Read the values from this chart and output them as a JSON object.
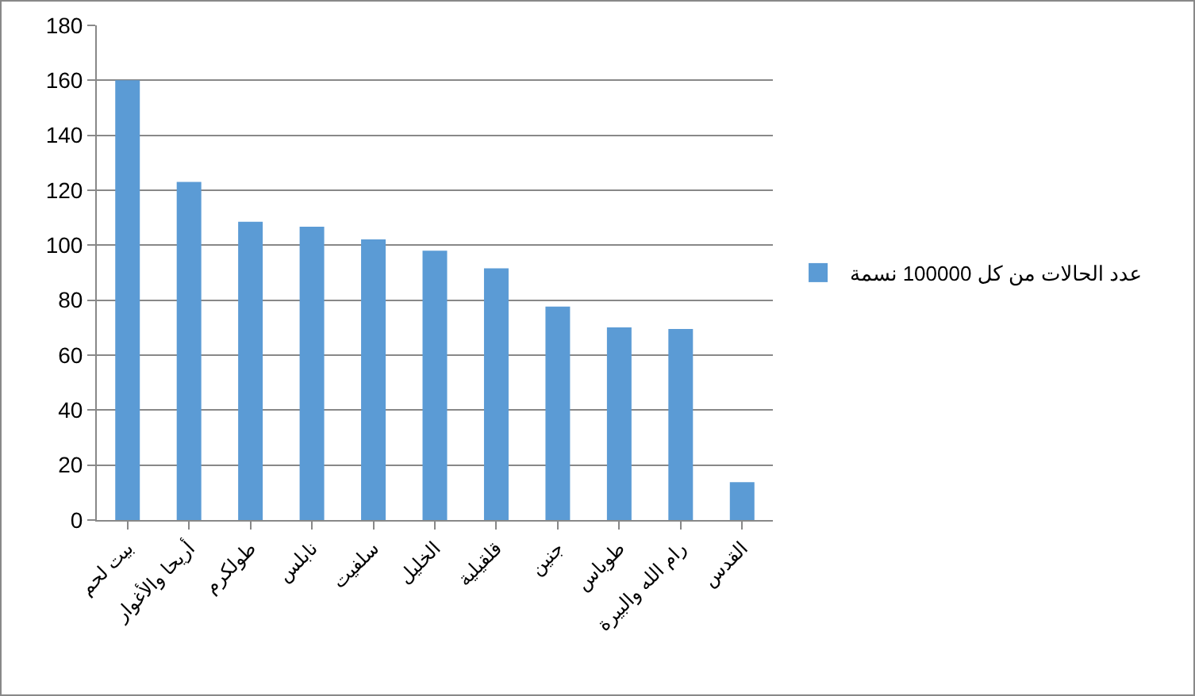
{
  "chart_data": {
    "type": "bar",
    "categories": [
      "بيت لحم",
      "أريحا والأغوار",
      "طولكرم",
      "نابلس",
      "سلفيت",
      "الخليل",
      "قلقيلية",
      "جنين",
      "طوباس",
      "رام الله والبيرة",
      "القدس"
    ],
    "series": [
      {
        "name": "عدد الحالات من كل 100000 نسمة",
        "color": "#5b9bd5",
        "values": [
          160,
          123,
          108.5,
          106.7,
          102.1,
          98,
          91.6,
          77.7,
          70.1,
          69.5,
          13.8
        ]
      }
    ],
    "ylim": [
      0,
      180
    ],
    "yticks": [
      0,
      20,
      40,
      60,
      80,
      100,
      120,
      140,
      160,
      180
    ],
    "grid": "y",
    "legend": "right"
  }
}
